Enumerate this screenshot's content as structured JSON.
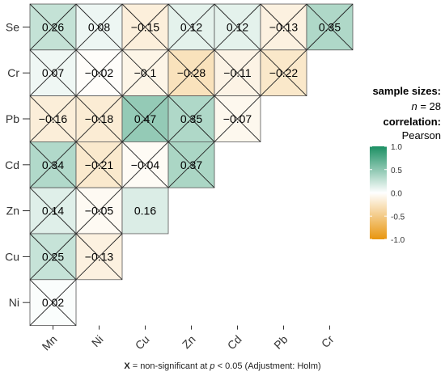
{
  "chart_data": {
    "type": "heatmap",
    "x_labels": [
      "Mn",
      "Ni",
      "Cu",
      "Zn",
      "Cd",
      "Pb",
      "Cr"
    ],
    "y_labels": [
      "Se",
      "Cr",
      "Pb",
      "Cd",
      "Zn",
      "Cu",
      "Ni"
    ],
    "cells": [
      {
        "x": "Mn",
        "y": "Se",
        "value": 0.26,
        "label": "0.26",
        "crossed": true
      },
      {
        "x": "Ni",
        "y": "Se",
        "value": 0.08,
        "label": "0.08",
        "crossed": true
      },
      {
        "x": "Cu",
        "y": "Se",
        "value": -0.15,
        "label": "−0.15",
        "crossed": true
      },
      {
        "x": "Zn",
        "y": "Se",
        "value": 0.12,
        "label": "0.12",
        "crossed": true
      },
      {
        "x": "Cd",
        "y": "Se",
        "value": 0.12,
        "label": "0.12",
        "crossed": true
      },
      {
        "x": "Pb",
        "y": "Se",
        "value": -0.13,
        "label": "−0.13",
        "crossed": true
      },
      {
        "x": "Cr",
        "y": "Se",
        "value": 0.35,
        "label": "0.35",
        "crossed": true
      },
      {
        "x": "Mn",
        "y": "Cr",
        "value": 0.07,
        "label": "0.07",
        "crossed": true
      },
      {
        "x": "Ni",
        "y": "Cr",
        "value": -0.02,
        "label": "−0.02",
        "crossed": true
      },
      {
        "x": "Cu",
        "y": "Cr",
        "value": -0.1,
        "label": "−0.1",
        "crossed": true
      },
      {
        "x": "Zn",
        "y": "Cr",
        "value": -0.28,
        "label": "−0.28",
        "crossed": true
      },
      {
        "x": "Cd",
        "y": "Cr",
        "value": -0.11,
        "label": "−0.11",
        "crossed": true
      },
      {
        "x": "Pb",
        "y": "Cr",
        "value": -0.22,
        "label": "−0.22",
        "crossed": true
      },
      {
        "x": "Mn",
        "y": "Pb",
        "value": -0.16,
        "label": "−0.16",
        "crossed": true
      },
      {
        "x": "Ni",
        "y": "Pb",
        "value": -0.18,
        "label": "−0.18",
        "crossed": true
      },
      {
        "x": "Cu",
        "y": "Pb",
        "value": 0.47,
        "label": "0.47",
        "crossed": true
      },
      {
        "x": "Zn",
        "y": "Pb",
        "value": 0.35,
        "label": "0.35",
        "crossed": true
      },
      {
        "x": "Cd",
        "y": "Pb",
        "value": -0.07,
        "label": "−0.07",
        "crossed": true
      },
      {
        "x": "Mn",
        "y": "Cd",
        "value": 0.34,
        "label": "0.34",
        "crossed": true
      },
      {
        "x": "Ni",
        "y": "Cd",
        "value": -0.21,
        "label": "−0.21",
        "crossed": true
      },
      {
        "x": "Cu",
        "y": "Cd",
        "value": -0.04,
        "label": "−0.04",
        "crossed": true
      },
      {
        "x": "Zn",
        "y": "Cd",
        "value": 0.37,
        "label": "0.37",
        "crossed": true
      },
      {
        "x": "Mn",
        "y": "Zn",
        "value": 0.14,
        "label": "0.14",
        "crossed": true
      },
      {
        "x": "Ni",
        "y": "Zn",
        "value": -0.05,
        "label": "−0.05",
        "crossed": true
      },
      {
        "x": "Cu",
        "y": "Zn",
        "value": 0.16,
        "label": "0.16",
        "crossed": false
      },
      {
        "x": "Mn",
        "y": "Cu",
        "value": 0.25,
        "label": "0.25",
        "crossed": true
      },
      {
        "x": "Ni",
        "y": "Cu",
        "value": -0.13,
        "label": "−0.13",
        "crossed": true
      },
      {
        "x": "Mn",
        "y": "Ni",
        "value": 0.02,
        "label": "0.02",
        "crossed": true
      }
    ],
    "color_scale": {
      "low": "#e8960f",
      "mid": "#ffffff",
      "high": "#1b8f63",
      "range": [
        -1.0,
        1.0
      ],
      "ticks": [
        1.0,
        0.5,
        0.0,
        -0.5,
        -1.0
      ],
      "tick_labels": [
        "1.0",
        "0.5",
        "0.0",
        "-0.5",
        "-1.0"
      ]
    },
    "legend": {
      "title": "sample sizes:",
      "n_italic": "n",
      "n_text": " = 28",
      "subtitle": "correlation:",
      "method": "Pearson",
      "placement": "right"
    },
    "caption": {
      "symbol": "X",
      "text_before": " = non-significant at ",
      "p_italic": "p",
      "text_after": " < 0.05 (Adjustment: Holm)"
    }
  }
}
